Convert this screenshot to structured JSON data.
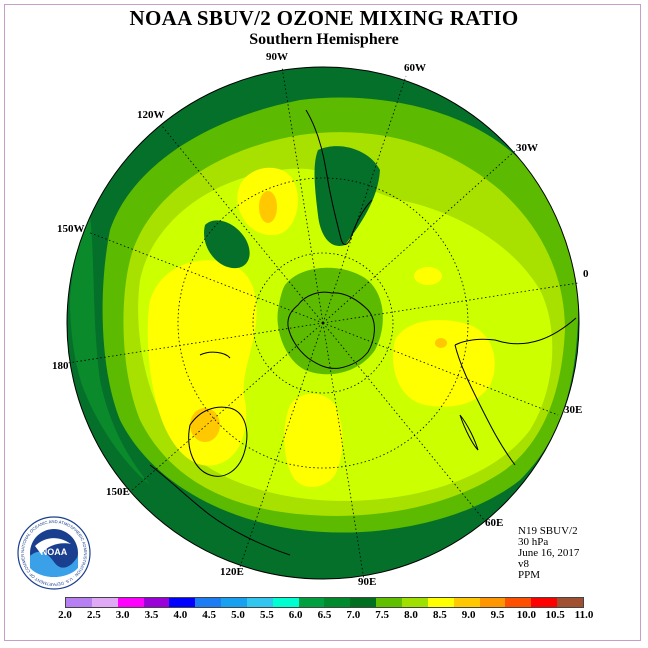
{
  "title": "NOAA SBUV/2 OZONE MIXING RATIO",
  "subtitle": "Southern Hemisphere",
  "longitude_labels": {
    "90W": "90W",
    "60W": "60W",
    "30W": "30W",
    "0": "0",
    "30E": "30E",
    "60E": "60E",
    "90E": "90E",
    "120E": "120E",
    "150E": "150E",
    "180": "180",
    "150W": "150W",
    "120W": "120W"
  },
  "info": {
    "satellite": "N19 SBUV/2",
    "level": "30 hPa",
    "date": "June 16, 2017",
    "version": "v8",
    "units": "PPM"
  },
  "logo": {
    "center_text": "NOAA",
    "ring_text": "NATIONAL OCEANIC AND ATMOSPHERIC ADMINISTRATION · U.S. DEPARTMENT OF COMMERCE"
  },
  "colorbar": {
    "ticks": [
      "2.0",
      "2.5",
      "3.0",
      "3.5",
      "4.0",
      "4.5",
      "5.0",
      "5.5",
      "6.0",
      "6.5",
      "7.0",
      "7.5",
      "8.0",
      "8.5",
      "9.0",
      "9.5",
      "10.0",
      "10.5",
      "11.0"
    ],
    "colors": [
      "#b680f2",
      "#dfa9f5",
      "#ff00ff",
      "#9a00d8",
      "#0000ff",
      "#1c7cf4",
      "#18a0f0",
      "#30c6f0",
      "#00ffd0",
      "#00a040",
      "#008a2e",
      "#007020",
      "#60c000",
      "#a0e000",
      "#ffff00",
      "#ffc800",
      "#ff9600",
      "#ff5000",
      "#ff0000",
      "#a05030"
    ]
  },
  "map_colors": {
    "c6_5": "#0b8a2c",
    "c7_0": "#05702a",
    "c7_5": "#5cba00",
    "c8_0": "#a8e000",
    "c8_5": "#ccff00",
    "c9_0": "#ffff00",
    "c9_5": "#ffc800",
    "c10_0": "#ff9600"
  }
}
